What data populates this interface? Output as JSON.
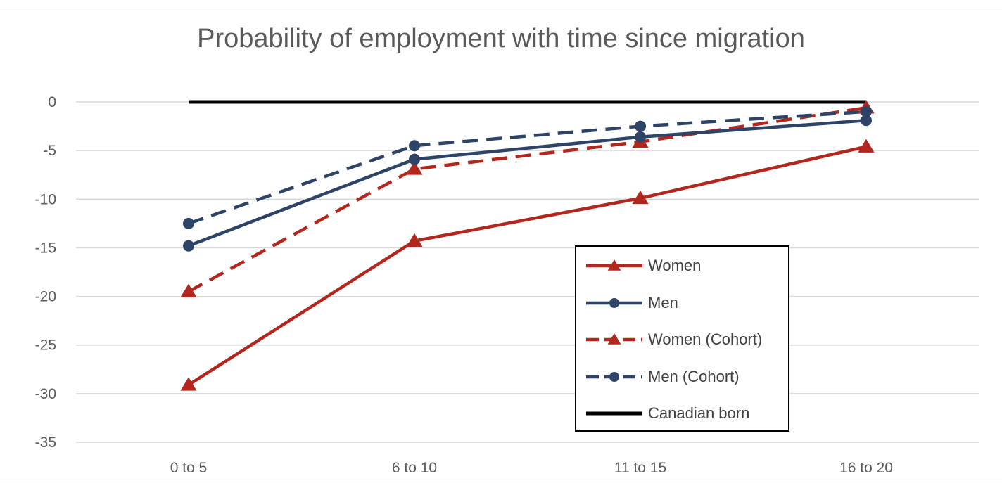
{
  "chart_data": {
    "type": "line",
    "title": "Probability of employment with time since migration",
    "categories": [
      "0 to 5",
      "6 to 10",
      "11 to 15",
      "16 to 20"
    ],
    "ylim": [
      -35,
      0
    ],
    "yticks": [
      0,
      -5,
      -10,
      -15,
      -20,
      -25,
      -30,
      -35
    ],
    "grid": true,
    "legend_position": "bottom-right-inside",
    "series": [
      {
        "name": "Women",
        "values": [
          -29.1,
          -14.3,
          -9.9,
          -4.6
        ],
        "color": "#b3261e",
        "dash": "solid",
        "marker": "triangle"
      },
      {
        "name": "Men",
        "values": [
          -14.8,
          -5.9,
          -3.6,
          -1.9
        ],
        "color": "#2e4466",
        "dash": "solid",
        "marker": "circle"
      },
      {
        "name": "Women (Cohort)",
        "values": [
          -19.5,
          -6.9,
          -4.1,
          -0.6
        ],
        "color": "#b3261e",
        "dash": "dashed",
        "marker": "triangle"
      },
      {
        "name": "Men (Cohort)",
        "values": [
          -12.5,
          -4.5,
          -2.5,
          -1.0
        ],
        "color": "#2e4466",
        "dash": "dashed",
        "marker": "circle"
      },
      {
        "name": "Canadian born",
        "values": [
          0,
          0,
          0,
          0
        ],
        "color": "#000000",
        "dash": "solid",
        "marker": "none"
      }
    ]
  }
}
